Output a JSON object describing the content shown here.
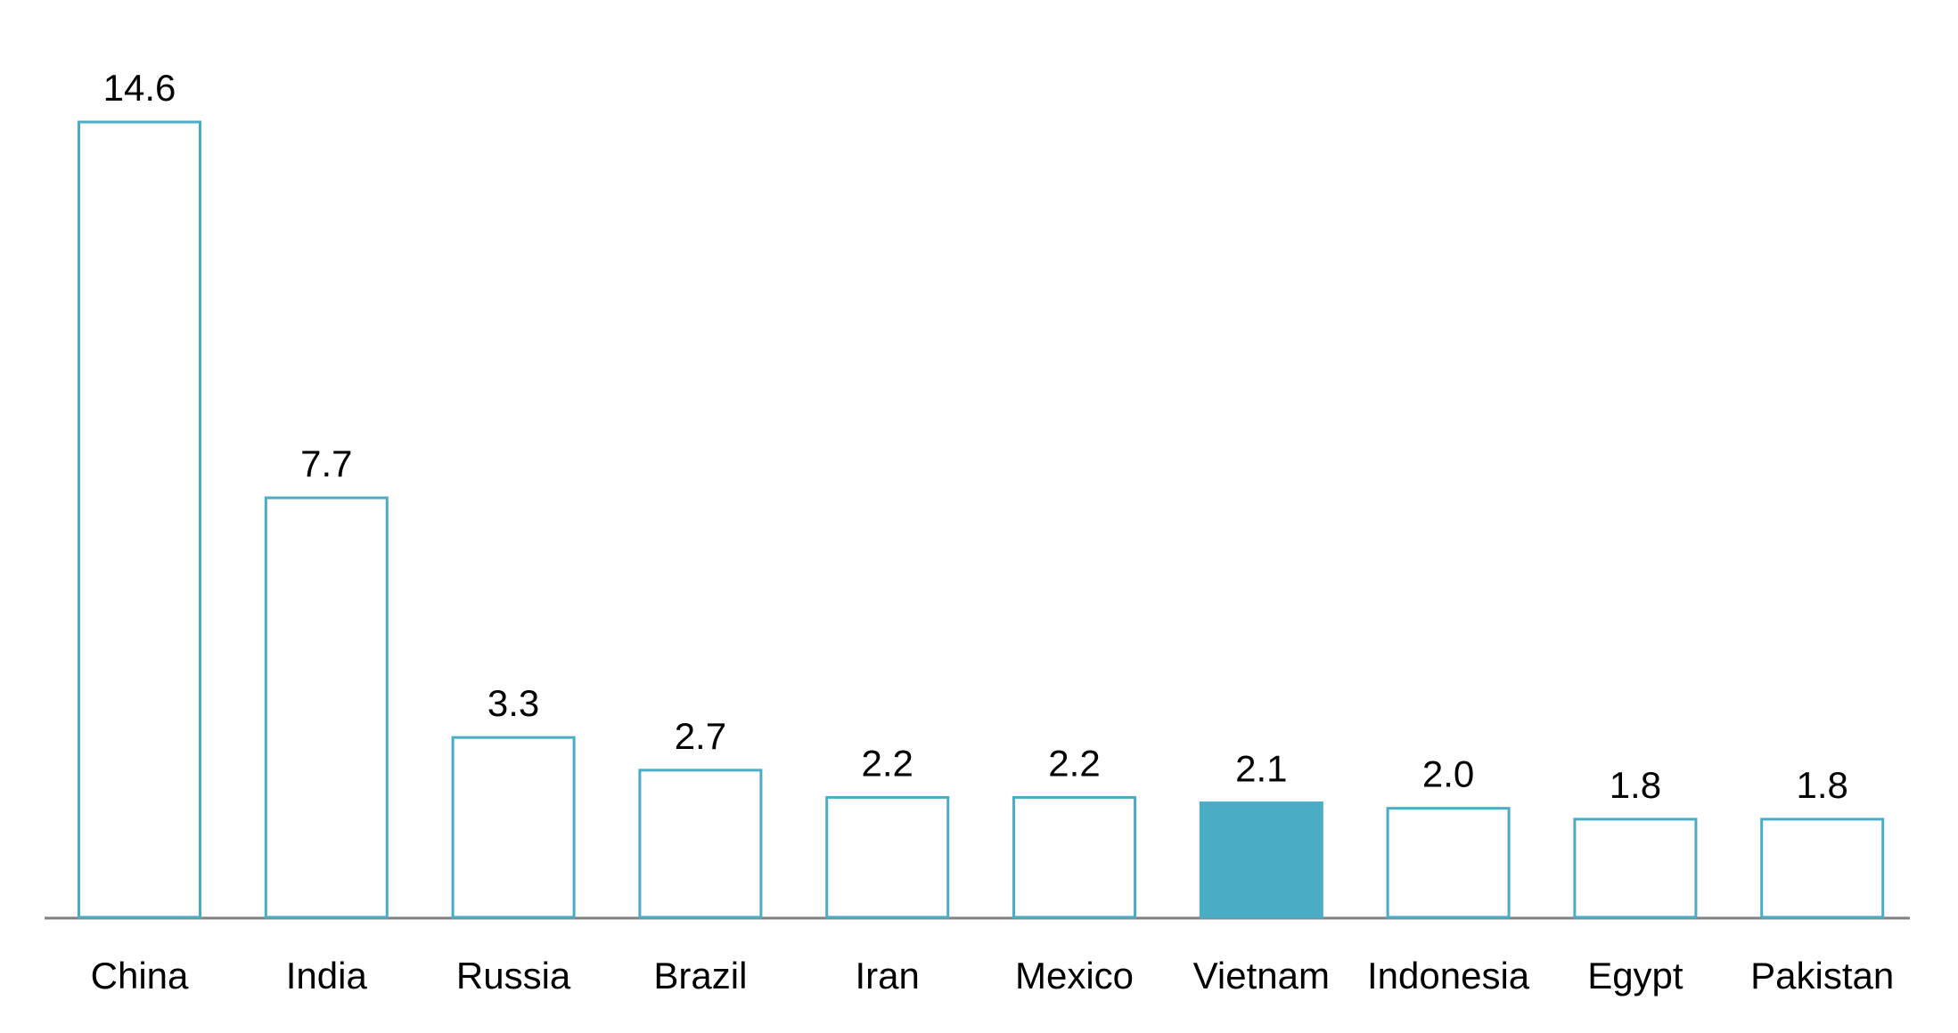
{
  "chart_data": {
    "type": "bar",
    "title": "",
    "xlabel": "",
    "ylabel": "",
    "categories": [
      "China",
      "India",
      "Russia",
      "Brazil",
      "Iran",
      "Mexico",
      "Vietnam",
      "Indonesia",
      "Egypt",
      "Pakistan"
    ],
    "values": [
      14.6,
      7.7,
      3.3,
      2.7,
      2.2,
      2.2,
      2.1,
      2.0,
      1.8,
      1.8
    ],
    "value_labels": [
      "14.6",
      "7.7",
      "3.3",
      "2.7",
      "2.2",
      "2.2",
      "2.1",
      "2.0",
      "1.8",
      "1.8"
    ],
    "highlighted_category": "Vietnam",
    "ylim": [
      0,
      14.6
    ],
    "grid": false,
    "legend": "none",
    "colors": {
      "bar_outline": "#4BACC6",
      "highlight_fill": "#4BACC6",
      "axis": "#808080"
    }
  }
}
